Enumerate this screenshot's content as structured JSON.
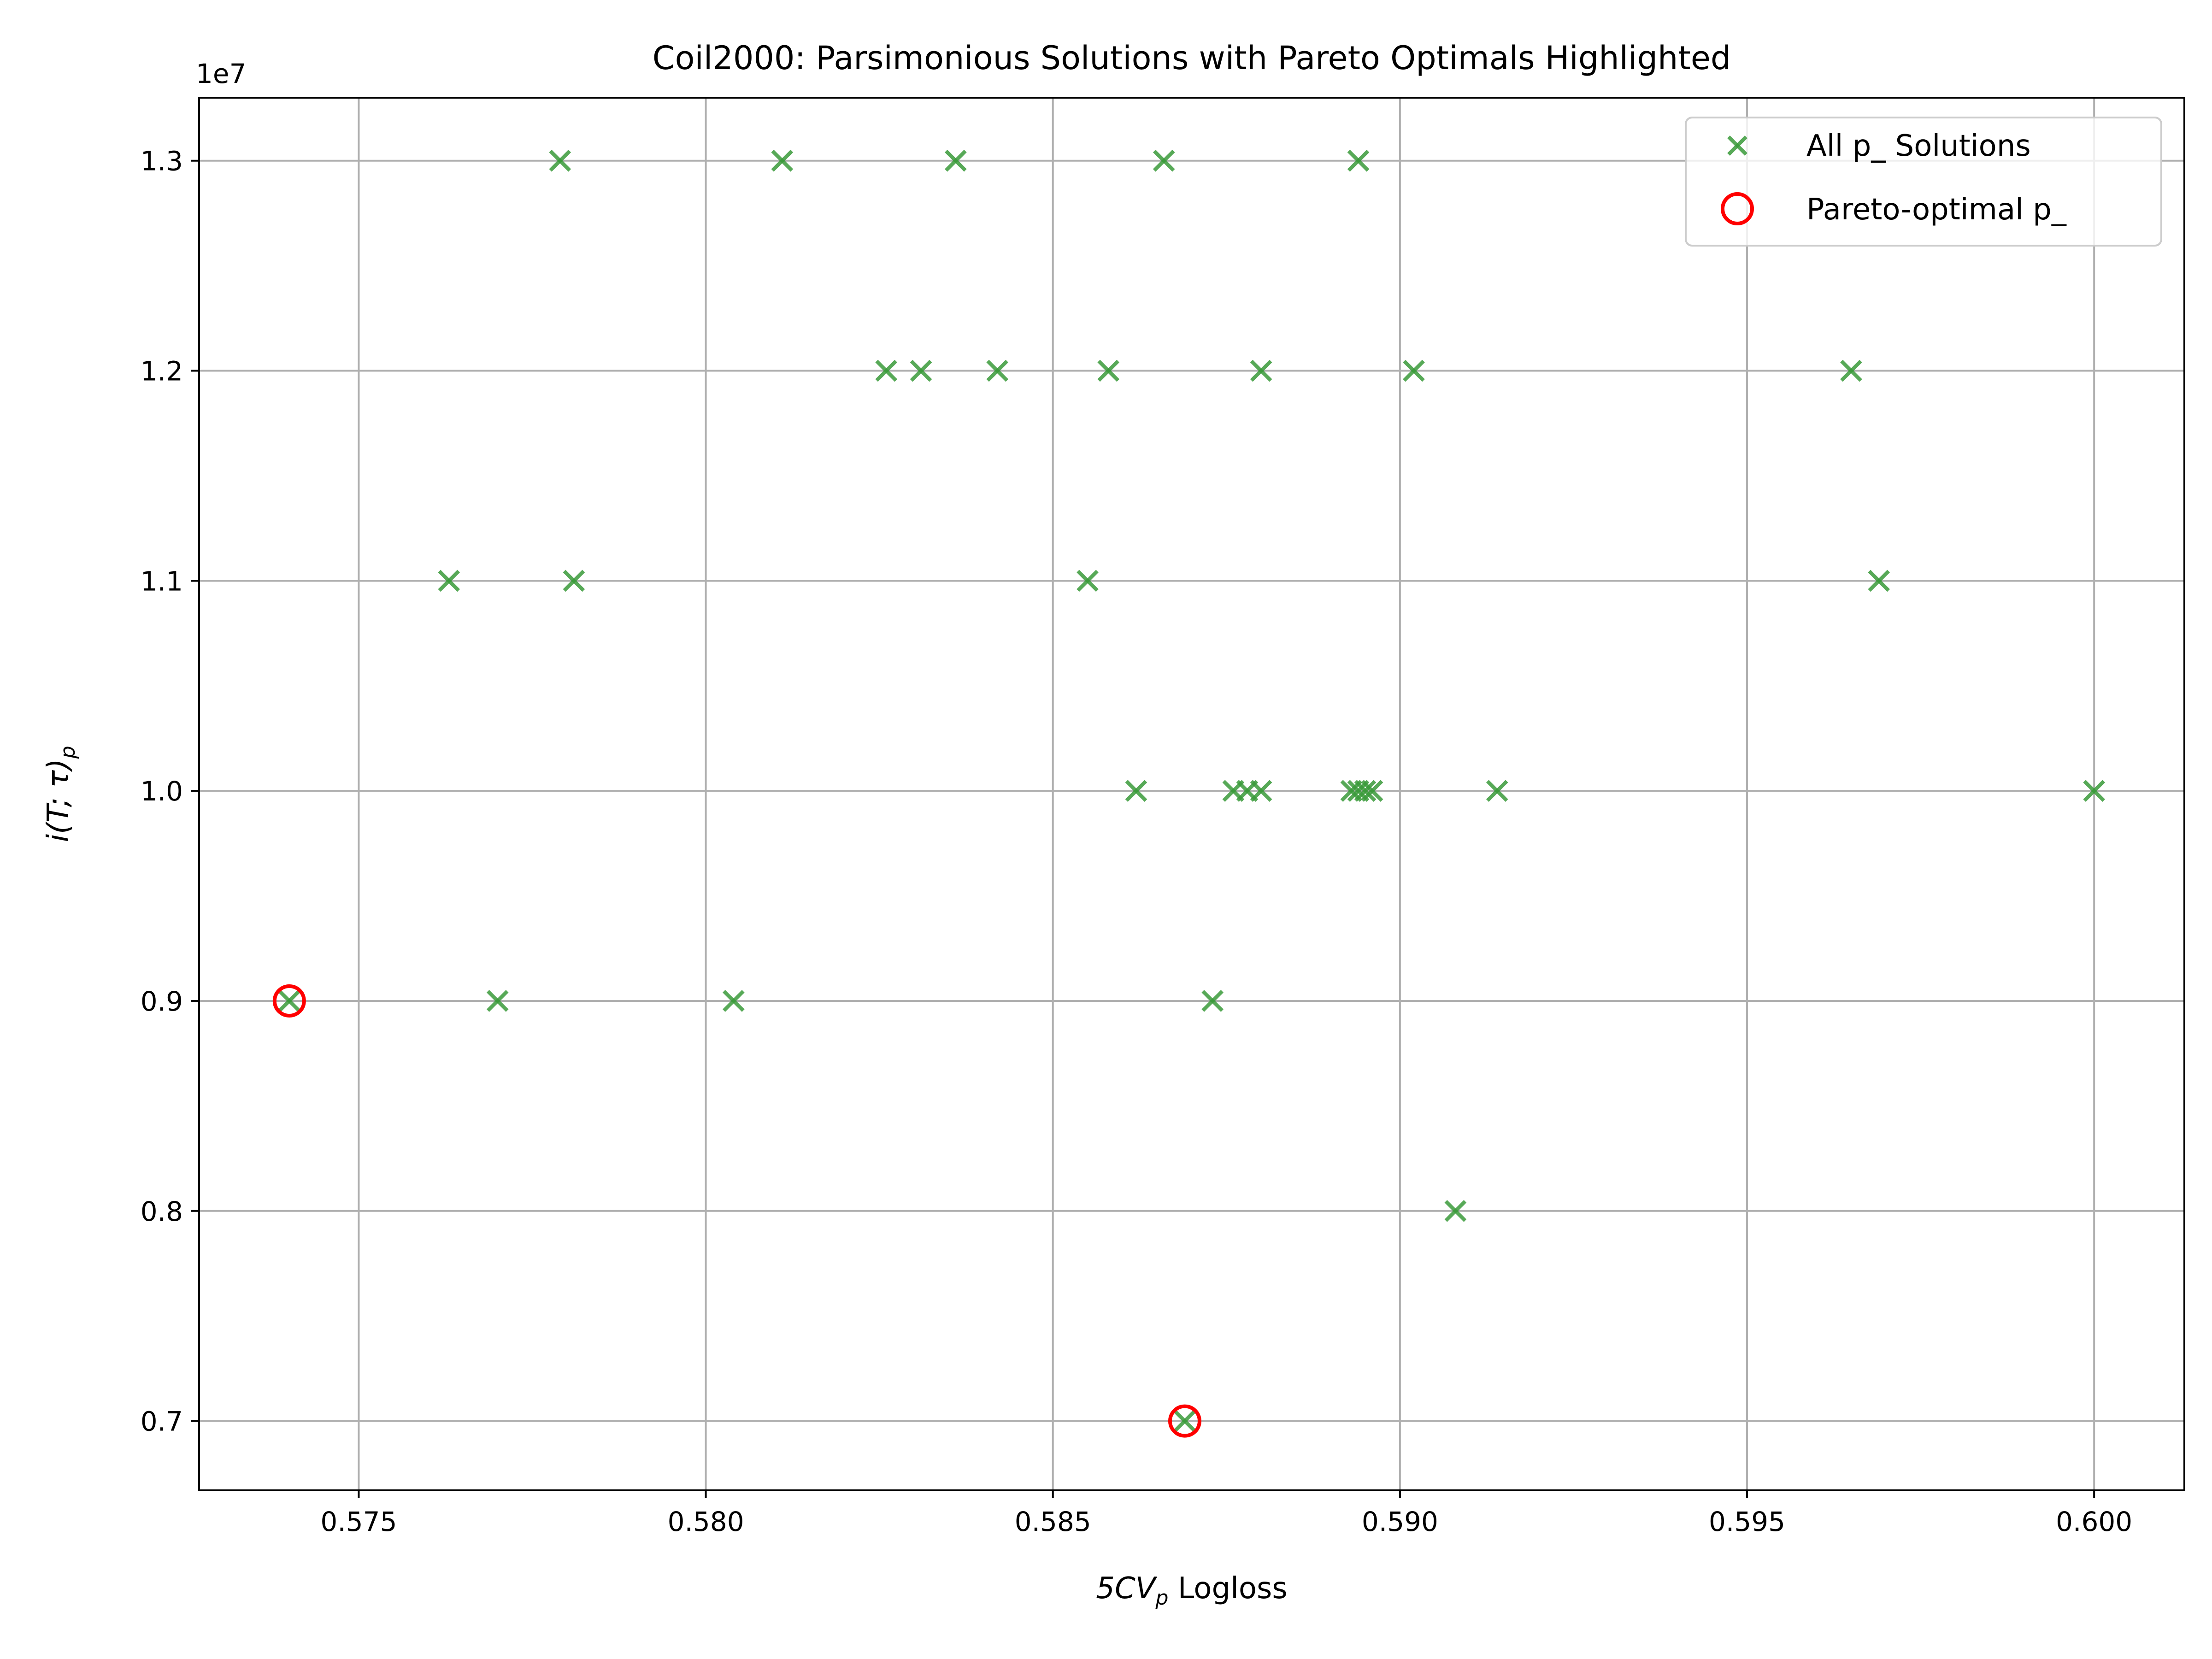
{
  "chart_data": {
    "type": "scatter",
    "title": "Coil2000: Parsimonious Solutions with Pareto Optimals Highlighted",
    "xlabel": "5CV",
    "xlabel_sub": "p",
    "xlabel_suffix": " Logloss",
    "ylabel": "i(T; τ)",
    "ylabel_sub": "p",
    "y_offset_label": "1e7",
    "xlim": [
      0.5727,
      0.6013
    ],
    "ylim": [
      6.67,
      13.3
    ],
    "x_ticks": [
      0.575,
      0.58,
      0.585,
      0.59,
      0.595,
      0.6
    ],
    "x_tick_labels": [
      "0.575",
      "0.580",
      "0.585",
      "0.590",
      "0.595",
      "0.600"
    ],
    "y_ticks": [
      7.0,
      8.0,
      9.0,
      10.0,
      11.0,
      12.0,
      13.0
    ],
    "y_tick_labels": [
      "0.7",
      "0.8",
      "0.9",
      "1.0",
      "1.1",
      "1.2",
      "1.3"
    ],
    "grid": true,
    "legend_position": "top-right",
    "series": [
      {
        "name": "All p_ Solutions",
        "marker": "x",
        "color": "#3a9a3a",
        "points": [
          [
            0.574,
            9.0
          ],
          [
            0.577,
            9.0
          ],
          [
            0.5804,
            9.0
          ],
          [
            0.5873,
            9.0
          ],
          [
            0.5869,
            7.0
          ],
          [
            0.5908,
            8.0
          ],
          [
            0.5763,
            11.0
          ],
          [
            0.5781,
            11.0
          ],
          [
            0.5855,
            11.0
          ],
          [
            0.5969,
            11.0
          ],
          [
            0.5862,
            10.0
          ],
          [
            0.5876,
            10.0
          ],
          [
            0.5878,
            10.0
          ],
          [
            0.588,
            10.0
          ],
          [
            0.5893,
            10.0
          ],
          [
            0.5894,
            10.0
          ],
          [
            0.5895,
            10.0
          ],
          [
            0.5896,
            10.0
          ],
          [
            0.5914,
            10.0
          ],
          [
            0.6,
            10.0
          ],
          [
            0.5826,
            12.0
          ],
          [
            0.5831,
            12.0
          ],
          [
            0.5842,
            12.0
          ],
          [
            0.5858,
            12.0
          ],
          [
            0.588,
            12.0
          ],
          [
            0.5902,
            12.0
          ],
          [
            0.5965,
            12.0
          ],
          [
            0.5779,
            13.0
          ],
          [
            0.5811,
            13.0
          ],
          [
            0.5836,
            13.0
          ],
          [
            0.5866,
            13.0
          ],
          [
            0.5894,
            13.0
          ]
        ]
      },
      {
        "name": "Pareto-optimal p_",
        "marker": "circle",
        "color": "#ff0000",
        "points": [
          [
            0.574,
            9.0
          ],
          [
            0.5869,
            7.0
          ]
        ]
      }
    ]
  }
}
